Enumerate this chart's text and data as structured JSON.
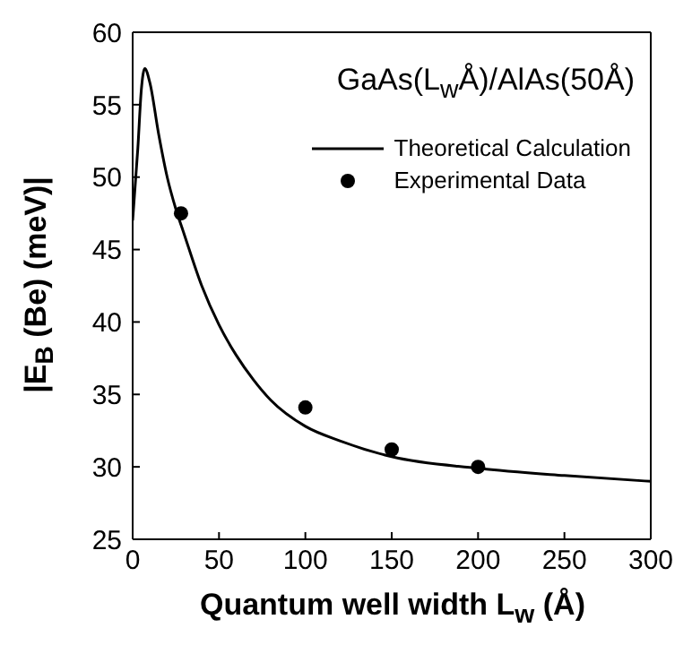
{
  "chart_data": {
    "type": "line",
    "xlabel": "Quantum well width L$_{w}$ (Å)",
    "ylabel": "|E$_{B}$ (Be)  (meV)|",
    "annotations": [
      "GaAs(L$_{w}$Å)/AlAs(50Å)"
    ],
    "xlim": [
      0,
      300
    ],
    "xticks": [
      0,
      50,
      100,
      150,
      200,
      250,
      300
    ],
    "ylim": [
      25,
      60
    ],
    "yticks": [
      25,
      30,
      35,
      40,
      45,
      50,
      55,
      60
    ],
    "legend": "top right",
    "series": [
      {
        "name": "Theoretical Calculation",
        "color": "#000000",
        "marker": "none",
        "line_style": "solid",
        "x": [
          0,
          3,
          5,
          7,
          10,
          15,
          20,
          25,
          30,
          40,
          50,
          60,
          70,
          80,
          100,
          120,
          150,
          200,
          250,
          300
        ],
        "values": [
          47,
          52,
          56,
          57.5,
          56.5,
          53,
          50,
          47.8,
          46,
          42.5,
          39.8,
          37.7,
          36,
          34.6,
          32.8,
          31.8,
          30.7,
          29.9,
          29.4,
          29
        ]
      },
      {
        "name": "Experimental Data",
        "type": "scatter",
        "color": "#000000",
        "marker": "circle",
        "x": [
          28,
          100,
          150,
          200
        ],
        "values": [
          47.5,
          34.1,
          31.2,
          30
        ]
      }
    ]
  }
}
